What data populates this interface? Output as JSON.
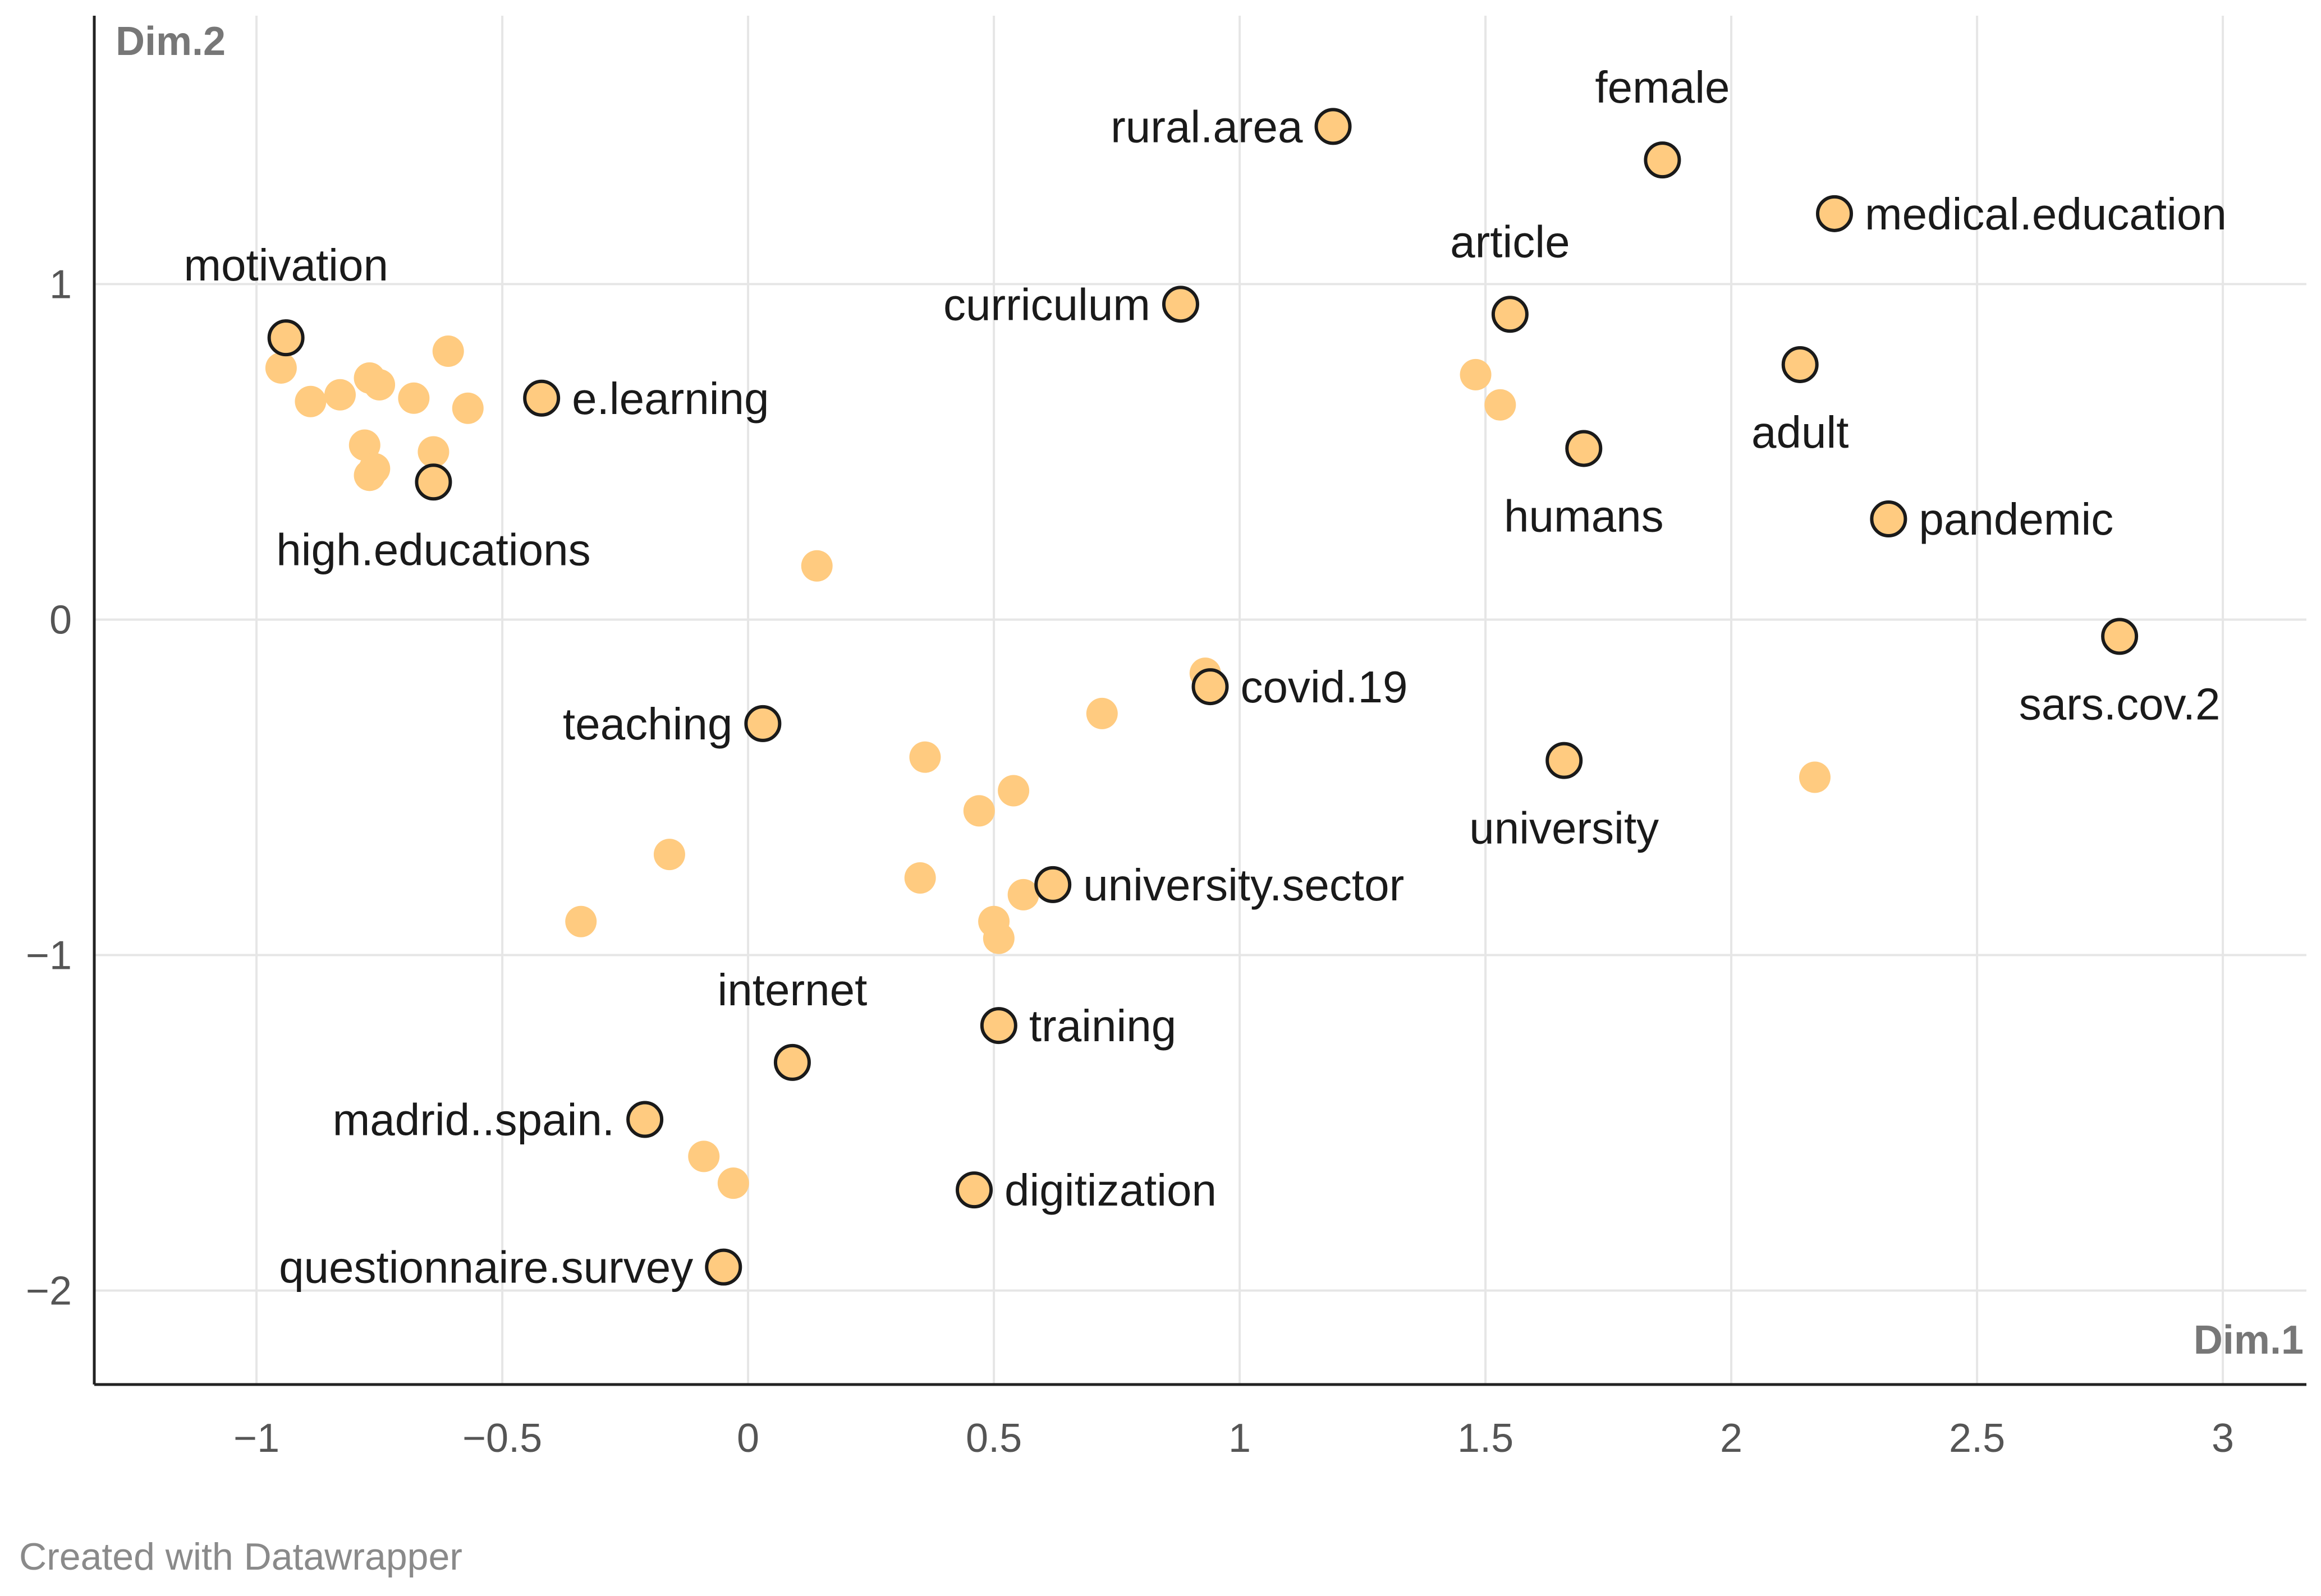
{
  "credit": "Created with Datawrapper",
  "colors": {
    "point_fill": "#ffcb80",
    "point_stroke": "#1a1a1a",
    "grid": "#e6e6e6",
    "axis": "#222222",
    "label": "#1a1a1a"
  },
  "chart_data": {
    "type": "scatter",
    "title": "",
    "xlabel": "Dim.1",
    "ylabel": "Dim.2",
    "xlim": [
      -1.33,
      3.17
    ],
    "ylim": [
      -2.28,
      1.8
    ],
    "x_ticks": [
      -1,
      -0.5,
      0,
      0.5,
      1,
      1.5,
      2,
      2.5,
      3
    ],
    "x_tick_labels": [
      "−1",
      "−0.5",
      "0",
      "0.5",
      "1",
      "1.5",
      "2",
      "2.5",
      "3"
    ],
    "y_ticks": [
      1,
      0,
      -1,
      -2
    ],
    "y_tick_labels": [
      "1",
      "0",
      "−1",
      "−2"
    ],
    "grid": true,
    "labeled_points": [
      {
        "label": "motivation",
        "x": -0.94,
        "y": 0.84,
        "label_pos": "above"
      },
      {
        "label": "e.learning",
        "x": -0.42,
        "y": 0.66,
        "label_pos": "right"
      },
      {
        "label": "high.educations",
        "x": -0.64,
        "y": 0.41,
        "label_pos": "below"
      },
      {
        "label": "rural.area",
        "x": 1.19,
        "y": 1.47,
        "label_pos": "left"
      },
      {
        "label": "curriculum",
        "x": 0.88,
        "y": 0.94,
        "label_pos": "left"
      },
      {
        "label": "female",
        "x": 1.86,
        "y": 1.37,
        "label_pos": "above"
      },
      {
        "label": "medical.education",
        "x": 2.21,
        "y": 1.21,
        "label_pos": "right"
      },
      {
        "label": "article",
        "x": 1.55,
        "y": 0.91,
        "label_pos": "above"
      },
      {
        "label": "adult",
        "x": 2.14,
        "y": 0.76,
        "label_pos": "below"
      },
      {
        "label": "humans",
        "x": 1.7,
        "y": 0.51,
        "label_pos": "below"
      },
      {
        "label": "pandemic",
        "x": 2.32,
        "y": 0.3,
        "label_pos": "right"
      },
      {
        "label": "sars.cov.2",
        "x": 2.79,
        "y": -0.05,
        "label_pos": "below"
      },
      {
        "label": "covid.19",
        "x": 0.94,
        "y": -0.2,
        "label_pos": "right"
      },
      {
        "label": "teaching",
        "x": 0.03,
        "y": -0.31,
        "label_pos": "left"
      },
      {
        "label": "university",
        "x": 1.66,
        "y": -0.42,
        "label_pos": "below"
      },
      {
        "label": "university.sector",
        "x": 0.62,
        "y": -0.79,
        "label_pos": "right"
      },
      {
        "label": "internet",
        "x": 0.09,
        "y": -1.32,
        "label_pos": "above"
      },
      {
        "label": "training",
        "x": 0.51,
        "y": -1.21,
        "label_pos": "right"
      },
      {
        "label": "madrid..spain.",
        "x": -0.21,
        "y": -1.49,
        "label_pos": "left"
      },
      {
        "label": "digitization",
        "x": 0.46,
        "y": -1.7,
        "label_pos": "right"
      },
      {
        "label": "questionnaire.survey",
        "x": -0.05,
        "y": -1.93,
        "label_pos": "left"
      }
    ],
    "unlabeled_points": [
      {
        "x": -0.95,
        "y": 0.75
      },
      {
        "x": -0.89,
        "y": 0.65
      },
      {
        "x": -0.83,
        "y": 0.67
      },
      {
        "x": -0.77,
        "y": 0.72
      },
      {
        "x": -0.75,
        "y": 0.7
      },
      {
        "x": -0.68,
        "y": 0.66
      },
      {
        "x": -0.61,
        "y": 0.8
      },
      {
        "x": -0.57,
        "y": 0.63
      },
      {
        "x": -0.78,
        "y": 0.52
      },
      {
        "x": -0.76,
        "y": 0.45
      },
      {
        "x": -0.77,
        "y": 0.43
      },
      {
        "x": -0.64,
        "y": 0.5
      },
      {
        "x": 0.14,
        "y": 0.16
      },
      {
        "x": 1.48,
        "y": 0.73
      },
      {
        "x": 1.53,
        "y": 0.64
      },
      {
        "x": 0.93,
        "y": -0.16
      },
      {
        "x": 0.72,
        "y": -0.28
      },
      {
        "x": 0.36,
        "y": -0.41
      },
      {
        "x": 0.47,
        "y": -0.57
      },
      {
        "x": 0.54,
        "y": -0.51
      },
      {
        "x": 0.35,
        "y": -0.77
      },
      {
        "x": 0.56,
        "y": -0.82
      },
      {
        "x": 0.5,
        "y": -0.9
      },
      {
        "x": 0.51,
        "y": -0.95
      },
      {
        "x": -0.16,
        "y": -0.7
      },
      {
        "x": -0.34,
        "y": -0.9
      },
      {
        "x": 2.17,
        "y": -0.47
      },
      {
        "x": -0.09,
        "y": -1.6
      },
      {
        "x": -0.03,
        "y": -1.68
      }
    ]
  }
}
